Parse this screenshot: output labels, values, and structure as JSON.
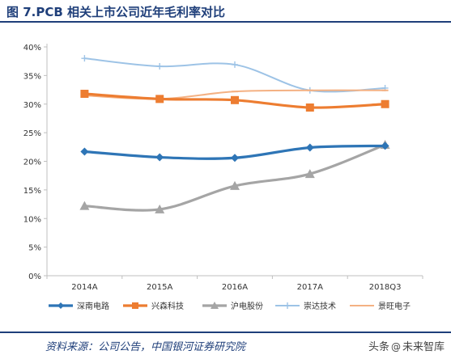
{
  "title": "图 7.PCB 相关上市公司近年毛利率对比",
  "source": "资料来源：公司公告，中国银河证券研究院",
  "watermark": {
    "platform": "头条",
    "account": "未来智库"
  },
  "colors": {
    "title": "#1f3f7a",
    "axis": "#bfbfbf",
    "text": "#333333"
  },
  "chart_data": {
    "type": "line",
    "categories": [
      "2014A",
      "2015A",
      "2016A",
      "2017A",
      "2018Q3"
    ],
    "y_ticks": [
      "0%",
      "5%",
      "10%",
      "15%",
      "20%",
      "25%",
      "30%",
      "35%",
      "40%"
    ],
    "ylim": [
      0,
      40
    ],
    "y_unit": "%",
    "grid": false,
    "legend_position": "bottom",
    "series": [
      {
        "name": "深南电路",
        "color": "#2e75b6",
        "marker": "diamond",
        "width": 3.2,
        "values": [
          21.7,
          20.7,
          20.6,
          22.4,
          22.7
        ]
      },
      {
        "name": "兴森科技",
        "color": "#ed7d31",
        "marker": "square",
        "width": 3.2,
        "values": [
          31.8,
          30.9,
          30.7,
          29.4,
          30.0
        ]
      },
      {
        "name": "沪电股份",
        "color": "#a5a5a5",
        "marker": "triangle",
        "width": 3.2,
        "values": [
          12.2,
          11.6,
          15.7,
          17.8,
          22.9
        ]
      },
      {
        "name": "崇达技术",
        "color": "#9dc3e6",
        "marker": "plus",
        "width": 2,
        "values": [
          38.0,
          36.6,
          36.9,
          32.4,
          32.8
        ]
      },
      {
        "name": "景旺电子",
        "color": "#f4b183",
        "marker": "dash",
        "width": 2,
        "values": [
          31.5,
          30.9,
          32.2,
          32.4,
          32.4
        ]
      }
    ]
  }
}
